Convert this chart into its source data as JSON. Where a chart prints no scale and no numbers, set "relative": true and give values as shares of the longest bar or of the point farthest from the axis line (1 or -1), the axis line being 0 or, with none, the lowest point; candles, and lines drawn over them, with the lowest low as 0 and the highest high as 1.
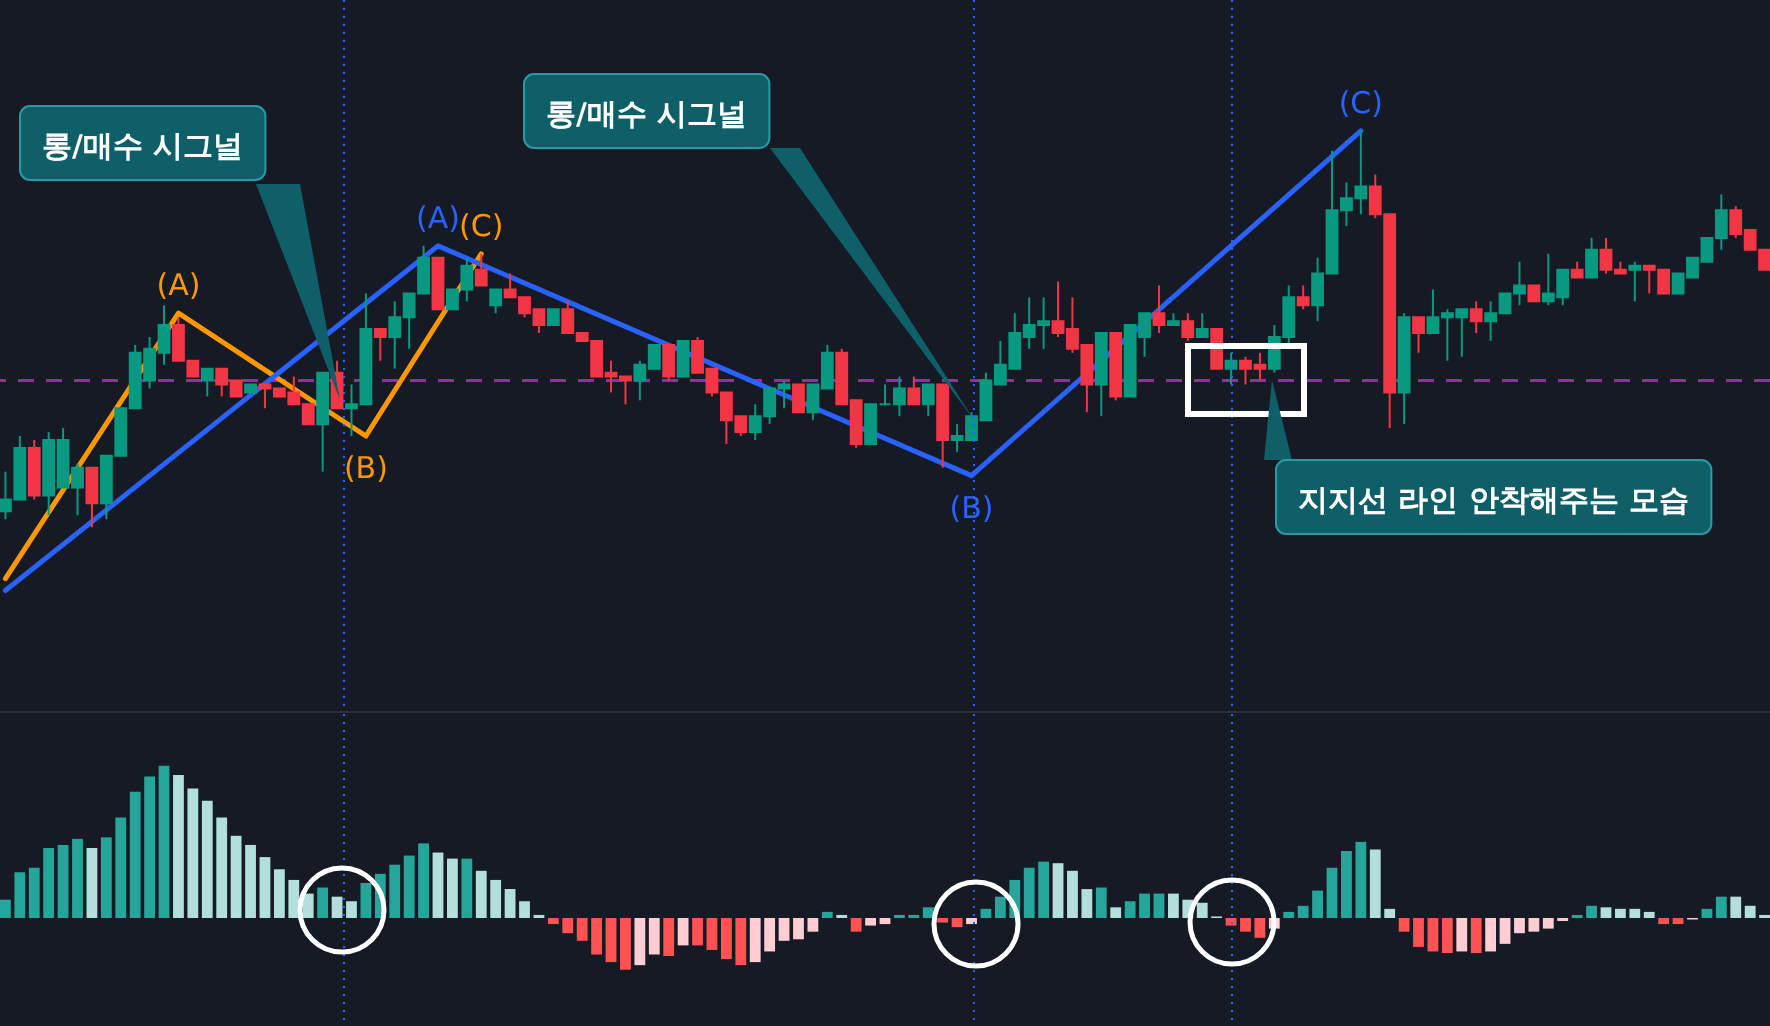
{
  "chart_data": [
    {
      "type": "candlestick",
      "relative": true,
      "categories": [
        null,
        null,
        null,
        null,
        null,
        null,
        null,
        null,
        null,
        null,
        null,
        null,
        null,
        null,
        null,
        null,
        null,
        null,
        null,
        null,
        null,
        null,
        null,
        null,
        null,
        null,
        null,
        null,
        null,
        null,
        null,
        null,
        null,
        null,
        null,
        null,
        null,
        null,
        null,
        null,
        null,
        null,
        null,
        null,
        null,
        null,
        null,
        null,
        null,
        null,
        null,
        null,
        null,
        null,
        null,
        null,
        null,
        null,
        null,
        null,
        null,
        null,
        null,
        null,
        null,
        null,
        null,
        null,
        null,
        null,
        null,
        null,
        null,
        null,
        null,
        null,
        null,
        null,
        null,
        null,
        null,
        null,
        null,
        null,
        null,
        null,
        null,
        null,
        null,
        null,
        null,
        null,
        null,
        null,
        null,
        null,
        null,
        null,
        null,
        null,
        null,
        null,
        null,
        null,
        null,
        null,
        null,
        null,
        null,
        null,
        null,
        null,
        null,
        null,
        null,
        null,
        null,
        null,
        null,
        null,
        null,
        null,
        null
      ],
      "ohlc": [
        [
          0.04,
          0.14,
          0.02,
          0.07
        ],
        [
          0.07,
          0.23,
          0.07,
          0.2
        ],
        [
          0.2,
          0.22,
          0.07,
          0.08
        ],
        [
          0.08,
          0.24,
          0.03,
          0.22
        ],
        [
          0.1,
          0.25,
          0.1,
          0.22
        ],
        [
          0.1,
          0.16,
          0.03,
          0.15
        ],
        [
          0.15,
          0.15,
          0,
          0.06
        ],
        [
          0.06,
          0.18,
          0.02,
          0.18
        ],
        [
          0.18,
          0.3,
          0.18,
          0.3
        ],
        [
          0.3,
          0.46,
          0.3,
          0.44
        ],
        [
          0.37,
          0.48,
          0.35,
          0.45
        ],
        [
          0.44,
          0.56,
          0.41,
          0.51
        ],
        [
          0.51,
          0.53,
          0.42,
          0.42
        ],
        [
          0.42,
          0.42,
          0.38,
          0.38
        ],
        [
          0.37,
          0.4,
          0.33,
          0.4
        ],
        [
          0.4,
          0.4,
          0.33,
          0.36
        ],
        [
          0.37,
          0.37,
          0.33,
          0.33
        ],
        [
          0.34,
          0.36,
          0.34,
          0.36
        ],
        [
          0.36,
          0.36,
          0.3,
          0.35
        ],
        [
          0.35,
          0.35,
          0.33,
          0.33
        ],
        [
          0.34,
          0.38,
          0.31,
          0.31
        ],
        [
          0.31,
          0.31,
          0.26,
          0.26
        ],
        [
          0.26,
          0.39,
          0.14,
          0.39
        ],
        [
          0.39,
          0.42,
          0.3,
          0.3
        ],
        [
          0.3,
          0.36,
          0.23,
          0.31
        ],
        [
          0.31,
          0.59,
          0.31,
          0.5
        ],
        [
          0.5,
          0.5,
          0.42,
          0.48
        ],
        [
          0.48,
          0.57,
          0.4,
          0.53
        ],
        [
          0.53,
          0.59,
          0.45,
          0.59
        ],
        [
          0.59,
          0.71,
          0.59,
          0.68
        ],
        [
          0.68,
          0.68,
          0.55,
          0.55
        ],
        [
          0.55,
          0.6,
          0.55,
          0.6
        ],
        [
          0.6,
          0.68,
          0.57,
          0.66
        ],
        [
          0.65,
          0.69,
          0.61,
          0.61
        ],
        [
          0.56,
          0.6,
          0.54,
          0.6
        ],
        [
          0.6,
          0.64,
          0.58,
          0.58
        ],
        [
          0.58,
          0.58,
          0.53,
          0.54
        ],
        [
          0.55,
          0.55,
          0.49,
          0.51
        ],
        [
          0.51,
          0.55,
          0.51,
          0.55
        ],
        [
          0.55,
          0.57,
          0.49,
          0.49
        ],
        [
          0.49,
          0.49,
          0.47,
          0.47
        ],
        [
          0.47,
          0.47,
          0.38,
          0.38
        ],
        [
          0.39,
          0.42,
          0.34,
          0.38
        ],
        [
          0.38,
          0.38,
          0.31,
          0.37
        ],
        [
          0.37,
          0.42,
          0.32,
          0.41
        ],
        [
          0.4,
          0.46,
          0.4,
          0.46
        ],
        [
          0.46,
          0.46,
          0.37,
          0.38
        ],
        [
          0.38,
          0.47,
          0.38,
          0.47
        ],
        [
          0.47,
          0.48,
          0.39,
          0.39
        ],
        [
          0.4,
          0.4,
          0.33,
          0.34
        ],
        [
          0.34,
          0.34,
          0.21,
          0.27
        ],
        [
          0.28,
          0.28,
          0.23,
          0.24
        ],
        [
          0.24,
          0.31,
          0.22,
          0.28
        ],
        [
          0.28,
          0.35,
          0.26,
          0.35
        ],
        [
          0.35,
          0.37,
          0.3,
          0.36
        ],
        [
          0.36,
          0.36,
          0.29,
          0.29
        ],
        [
          0.29,
          0.36,
          0.27,
          0.36
        ],
        [
          0.35,
          0.46,
          0.35,
          0.44
        ],
        [
          0.44,
          0.45,
          0.31,
          0.31
        ],
        [
          0.32,
          0.32,
          0.2,
          0.21
        ],
        [
          0.21,
          0.31,
          0.21,
          0.31
        ],
        [
          0.31,
          0.36,
          0.31,
          0.31
        ],
        [
          0.31,
          0.38,
          0.28,
          0.35
        ],
        [
          0.35,
          0.38,
          0.31,
          0.31
        ],
        [
          0.31,
          0.36,
          0.28,
          0.36
        ],
        [
          0.36,
          0.36,
          0.15,
          0.22
        ],
        [
          0.22,
          0.26,
          0.19,
          0.23
        ],
        [
          0.22,
          0.29,
          0.22,
          0.28
        ],
        [
          0.27,
          0.39,
          0.27,
          0.37
        ],
        [
          0.36,
          0.47,
          0.36,
          0.41
        ],
        [
          0.4,
          0.54,
          0.4,
          0.49
        ],
        [
          0.48,
          0.58,
          0.45,
          0.51
        ],
        [
          0.51,
          0.58,
          0.45,
          0.52
        ],
        [
          0.52,
          0.62,
          0.48,
          0.49
        ],
        [
          0.5,
          0.58,
          0.44,
          0.45
        ],
        [
          0.46,
          0.46,
          0.29,
          0.36
        ],
        [
          0.36,
          0.49,
          0.28,
          0.49
        ],
        [
          0.49,
          0.49,
          0.32,
          0.33
        ],
        [
          0.33,
          0.51,
          0.33,
          0.51
        ],
        [
          0.48,
          0.54,
          0.43,
          0.54
        ],
        [
          0.54,
          0.61,
          0.49,
          0.51
        ],
        [
          0.51,
          0.54,
          0.51,
          0.52
        ],
        [
          0.52,
          0.54,
          0.47,
          0.48
        ],
        [
          0.48,
          0.54,
          0.48,
          0.5
        ],
        [
          0.5,
          0.5,
          0.4,
          0.4
        ],
        [
          0.4,
          0.44,
          0.36,
          0.42
        ],
        [
          0.42,
          0.43,
          0.36,
          0.4
        ],
        [
          0.41,
          0.44,
          0.37,
          0.4
        ],
        [
          0.4,
          0.51,
          0.39,
          0.48
        ],
        [
          0.48,
          0.61,
          0.45,
          0.58
        ],
        [
          0.58,
          0.61,
          0.55,
          0.56
        ],
        [
          0.56,
          0.68,
          0.52,
          0.64
        ],
        [
          0.64,
          0.95,
          0.64,
          0.8
        ],
        [
          0.8,
          0.87,
          0.76,
          0.83
        ],
        [
          0.83,
          1,
          0.79,
          0.86
        ],
        [
          0.86,
          0.89,
          0.78,
          0.79
        ],
        [
          0.79,
          0.79,
          0.25,
          0.34
        ],
        [
          0.34,
          0.54,
          0.26,
          0.53
        ],
        [
          0.53,
          0.53,
          0.44,
          0.49
        ],
        [
          0.49,
          0.6,
          0.49,
          0.53
        ],
        [
          0.53,
          0.55,
          0.42,
          0.54
        ],
        [
          0.53,
          0.55,
          0.43,
          0.55
        ],
        [
          0.55,
          0.57,
          0.49,
          0.52
        ],
        [
          0.52,
          0.57,
          0.47,
          0.54
        ],
        [
          0.54,
          0.59,
          0.54,
          0.59
        ],
        [
          0.59,
          0.67,
          0.56,
          0.61
        ],
        [
          0.61,
          0.61,
          0.57,
          0.57
        ],
        [
          0.57,
          0.69,
          0.56,
          0.59
        ],
        [
          0.58,
          0.65,
          0.56,
          0.65
        ],
        [
          0.65,
          0.67,
          0.63,
          0.63
        ],
        [
          0.63,
          0.73,
          0.63,
          0.7
        ],
        [
          0.7,
          0.73,
          0.64,
          0.65
        ],
        [
          0.65,
          0.67,
          0.64,
          0.64
        ],
        [
          0.65,
          0.67,
          0.57,
          0.66
        ],
        [
          0.66,
          0.66,
          0.59,
          0.65
        ],
        [
          0.65,
          0.65,
          0.59,
          0.59
        ],
        [
          0.59,
          0.64,
          0.59,
          0.64
        ],
        [
          0.63,
          0.68,
          0.63,
          0.68
        ],
        [
          0.67,
          0.73,
          0.67,
          0.73
        ],
        [
          0.73,
          0.84,
          0.7,
          0.8
        ],
        [
          0.8,
          0.81,
          0.73,
          0.74
        ],
        [
          0.75,
          0.75,
          0.7,
          0.7
        ],
        [
          0.7,
          0.7,
          0.65,
          0.65
        ]
      ],
      "series": [
        {
          "type": "line",
          "color": "#ff9800",
          "values": [
            -0.13,
            null,
            null,
            null,
            null,
            null,
            null,
            null,
            null,
            null,
            null,
            null,
            0.54,
            null,
            null,
            null,
            null,
            null,
            null,
            null,
            null,
            null,
            null,
            null,
            null,
            0.23,
            null,
            null,
            null,
            null,
            null,
            null,
            null,
            0.69,
            null,
            null,
            null,
            null,
            null,
            null,
            null,
            null,
            null,
            null,
            null,
            null,
            null,
            null,
            null,
            null,
            null,
            null,
            null,
            null,
            null,
            null,
            null,
            null,
            null,
            null,
            null,
            null,
            null,
            null,
            null,
            null,
            null,
            null,
            null,
            null,
            null,
            null,
            null,
            null,
            null,
            null,
            null,
            null,
            null,
            null,
            null,
            null,
            null,
            null,
            null,
            null,
            null,
            null,
            null,
            null,
            null,
            null,
            null,
            null,
            null,
            null,
            null,
            null,
            null,
            null,
            null,
            null,
            null,
            null,
            null,
            null,
            null,
            null,
            null,
            null,
            null,
            null,
            null,
            null,
            null,
            null,
            null,
            null,
            null,
            null,
            null,
            null,
            null
          ]
        },
        {
          "type": "line",
          "color": "#2962ff",
          "values": [
            -0.16,
            null,
            null,
            null,
            null,
            null,
            null,
            null,
            null,
            null,
            null,
            null,
            null,
            null,
            null,
            null,
            null,
            null,
            null,
            null,
            null,
            null,
            null,
            null,
            null,
            null,
            null,
            null,
            null,
            null,
            0.71,
            null,
            null,
            null,
            null,
            null,
            null,
            null,
            null,
            null,
            null,
            null,
            null,
            null,
            null,
            null,
            null,
            null,
            null,
            null,
            null,
            null,
            null,
            null,
            null,
            null,
            null,
            null,
            null,
            null,
            null,
            null,
            null,
            null,
            null,
            null,
            null,
            0.13,
            null,
            null,
            null,
            null,
            null,
            null,
            null,
            null,
            null,
            null,
            null,
            null,
            null,
            null,
            null,
            null,
            null,
            null,
            null,
            null,
            null,
            null,
            null,
            null,
            null,
            null,
            1,
            null,
            null,
            null,
            null,
            null,
            null,
            null,
            null,
            null,
            null,
            null,
            null,
            null,
            null,
            null,
            null,
            null,
            null,
            null,
            null,
            null,
            null,
            null,
            null,
            null,
            null,
            null,
            null
          ]
        }
      ],
      "ref_lines": [
        {
          "axis": "y",
          "value": 0.37,
          "color": "#9c27b0",
          "line_style": "dashed"
        }
      ],
      "annotations": [
        "롱/매수 시그널",
        "롱/매수 시그널",
        "지지선 라인 안착해주는 모습",
        {
          "text": "(A)",
          "y": 0.54
        },
        {
          "text": "(B)",
          "y": 0.23
        },
        {
          "text": "(C)",
          "y": 0.69
        },
        {
          "text": "(A)",
          "y": 0.71
        },
        {
          "text": "(B)",
          "y": 0.13
        },
        {
          "text": "(C)",
          "y": 1
        }
      ]
    },
    {
      "type": "bar",
      "relative": true,
      "categories": [
        null,
        null,
        null,
        null,
        null,
        null,
        null,
        null,
        null,
        null,
        null,
        null,
        null,
        null,
        null,
        null,
        null,
        null,
        null,
        null,
        null,
        null,
        null,
        null,
        null,
        null,
        null,
        null,
        null,
        null,
        null,
        null,
        null,
        null,
        null,
        null,
        null,
        null,
        null,
        null,
        null,
        null,
        null,
        null,
        null,
        null,
        null,
        null,
        null,
        null,
        null,
        null,
        null,
        null,
        null,
        null,
        null,
        null,
        null,
        null,
        null,
        null,
        null,
        null,
        null,
        null,
        null,
        null,
        null,
        null,
        null,
        null,
        null,
        null,
        null,
        null,
        null,
        null,
        null,
        null,
        null,
        null,
        null,
        null,
        null,
        null,
        null,
        null,
        null,
        null,
        null,
        null,
        null,
        null,
        null,
        null,
        null,
        null,
        null,
        null,
        null,
        null,
        null,
        null,
        null,
        null,
        null,
        null,
        null,
        null,
        null,
        null,
        null,
        null,
        null,
        null,
        null,
        null,
        null,
        null,
        null,
        null,
        null
      ],
      "values": [
        0.12,
        0.3,
        0.33,
        0.46,
        0.48,
        0.52,
        0.46,
        0.53,
        0.66,
        0.83,
        0.93,
        1,
        0.94,
        0.85,
        0.77,
        0.66,
        0.54,
        0.48,
        0.4,
        0.32,
        0.25,
        0.16,
        0.2,
        0.14,
        0.11,
        0.23,
        0.29,
        0.35,
        0.41,
        0.49,
        0.43,
        0.39,
        0.39,
        0.31,
        0.25,
        0.19,
        0.11,
        0.02,
        -0.04,
        -0.1,
        -0.15,
        -0.24,
        -0.29,
        -0.34,
        -0.31,
        -0.24,
        -0.25,
        -0.18,
        -0.18,
        -0.21,
        -0.27,
        -0.31,
        -0.29,
        -0.22,
        -0.15,
        -0.14,
        -0.09,
        0.04,
        0.02,
        -0.09,
        -0.05,
        -0.04,
        0.02,
        0.02,
        0.07,
        -0.03,
        -0.06,
        -0.04,
        0.06,
        0.14,
        0.25,
        0.33,
        0.37,
        0.36,
        0.31,
        0.19,
        0.2,
        0.07,
        0.11,
        0.16,
        0.16,
        0.16,
        0.12,
        0.1,
        0.01,
        -0.05,
        -0.09,
        -0.13,
        -0.07,
        0.04,
        0.08,
        0.18,
        0.33,
        0.44,
        0.5,
        0.45,
        0.06,
        -0.09,
        -0.19,
        -0.22,
        -0.23,
        -0.22,
        -0.23,
        -0.22,
        -0.17,
        -0.1,
        -0.09,
        -0.07,
        -0.02,
        0.02,
        0.08,
        0.07,
        0.06,
        0.06,
        0.04,
        -0.04,
        -0.04,
        -0.01,
        0.06,
        0.14,
        0.14,
        0.08,
        0.02
      ],
      "colors": [
        "#26a69a",
        "#26a69a",
        "#26a69a",
        "#26a69a",
        "#26a69a",
        "#26a69a",
        "#b2dfdb",
        "#26a69a",
        "#26a69a",
        "#26a69a",
        "#26a69a",
        "#26a69a",
        "#b2dfdb",
        "#b2dfdb",
        "#b2dfdb",
        "#b2dfdb",
        "#b2dfdb",
        "#b2dfdb",
        "#b2dfdb",
        "#b2dfdb",
        "#b2dfdb",
        "#b2dfdb",
        "#26a69a",
        "#b2dfdb",
        "#b2dfdb",
        "#26a69a",
        "#26a69a",
        "#26a69a",
        "#26a69a",
        "#26a69a",
        "#b2dfdb",
        "#b2dfdb",
        "#26a69a",
        "#b2dfdb",
        "#b2dfdb",
        "#b2dfdb",
        "#b2dfdb",
        "#b2dfdb",
        "#ff5252",
        "#ff5252",
        "#ff5252",
        "#ff5252",
        "#ff5252",
        "#ff5252",
        "#ffcdd2",
        "#ffcdd2",
        "#ff5252",
        "#ffcdd2",
        "#ff5252",
        "#ff5252",
        "#ff5252",
        "#ff5252",
        "#ffcdd2",
        "#ffcdd2",
        "#ffcdd2",
        "#ffcdd2",
        "#ffcdd2",
        "#26a69a",
        "#b2dfdb",
        "#ff5252",
        "#ffcdd2",
        "#ffcdd2",
        "#26a69a",
        "#26a69a",
        "#26a69a",
        "#ff5252",
        "#ff5252",
        "#ffcdd2",
        "#26a69a",
        "#26a69a",
        "#26a69a",
        "#26a69a",
        "#26a69a",
        "#b2dfdb",
        "#b2dfdb",
        "#b2dfdb",
        "#26a69a",
        "#b2dfdb",
        "#26a69a",
        "#26a69a",
        "#26a69a",
        "#b2dfdb",
        "#b2dfdb",
        "#b2dfdb",
        "#b2dfdb",
        "#ff5252",
        "#ff5252",
        "#ff5252",
        "#ffcdd2",
        "#26a69a",
        "#26a69a",
        "#26a69a",
        "#26a69a",
        "#26a69a",
        "#26a69a",
        "#b2dfdb",
        "#b2dfdb",
        "#ff5252",
        "#ff5252",
        "#ff5252",
        "#ff5252",
        "#ffcdd2",
        "#ff5252",
        "#ffcdd2",
        "#ffcdd2",
        "#ffcdd2",
        "#ffcdd2",
        "#ffcdd2",
        "#ffcdd2",
        "#26a69a",
        "#26a69a",
        "#b2dfdb",
        "#b2dfdb",
        "#b2dfdb",
        "#b2dfdb",
        "#ff5252",
        "#ff5252",
        "#ffcdd2",
        "#26a69a",
        "#26a69a",
        "#b2dfdb",
        "#b2dfdb",
        "#b2dfdb"
      ]
    }
  ]
}
